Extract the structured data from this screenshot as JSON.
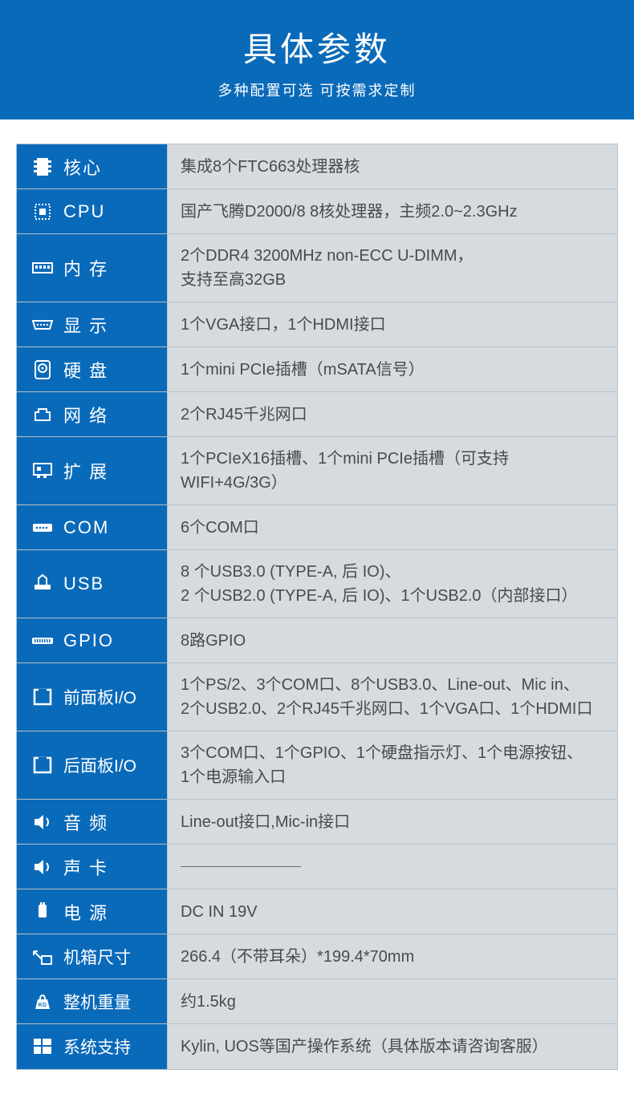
{
  "header": {
    "title": "具体参数",
    "subtitle": "多种配置可选 可按需求定制"
  },
  "colors": {
    "header_bg": "#0a6aba",
    "label_bg": "#0a6aba",
    "value_bg": "#d6dbe0",
    "border": "#b8c0c8",
    "label_text": "#ffffff",
    "value_text": "#4a4a4a"
  },
  "specs": [
    {
      "icon": "chip",
      "label": "核心",
      "value": "集成8个FTC663处理器核"
    },
    {
      "icon": "cpu",
      "label": "CPU",
      "value": "国产飞腾D2000/8  8核处理器，主频2.0~2.3GHz"
    },
    {
      "icon": "ram",
      "label": "内 存",
      "value": "2个DDR4 3200MHz non-ECC U-DIMM，\n支持至高32GB",
      "tall": true
    },
    {
      "icon": "vga",
      "label": "显 示",
      "value": "1个VGA接口，1个HDMI接口"
    },
    {
      "icon": "hdd",
      "label": "硬 盘",
      "value": "1个mini PCIe插槽（mSATA信号）"
    },
    {
      "icon": "net",
      "label": "网 络",
      "value": "2个RJ45千兆网口"
    },
    {
      "icon": "expand",
      "label": "扩 展",
      "value": "1个PCIeX16插槽、1个mini PCIe插槽（可支持WIFI+4G/3G）"
    },
    {
      "icon": "com",
      "label": "COM",
      "value": "6个COM口"
    },
    {
      "icon": "usb",
      "label": "USB",
      "value": "8 个USB3.0 (TYPE-A, 后 IO)、\n2 个USB2.0 (TYPE-A, 后 IO)、1个USB2.0（内部接口）",
      "tall": true
    },
    {
      "icon": "gpio",
      "label": "GPIO",
      "value": "8路GPIO"
    },
    {
      "icon": "panel",
      "label": "前面板I/O",
      "value": "1个PS/2、3个COM口、8个USB3.0、Line-out、Mic in、\n2个USB2.0、2个RJ45千兆网口、1个VGA口、1个HDMI口",
      "tall": true,
      "narrow": true
    },
    {
      "icon": "panel",
      "label": "后面板I/O",
      "value": "3个COM口、1个GPIO、1个硬盘指示灯、1个电源按钮、\n1个电源输入口",
      "tall": true,
      "narrow": true
    },
    {
      "icon": "audio",
      "label": "音 频",
      "value": "Line-out接口,Mic-in接口"
    },
    {
      "icon": "audio",
      "label": "声 卡",
      "value": "",
      "dash": true
    },
    {
      "icon": "power",
      "label": "电 源",
      "value": "DC IN 19V"
    },
    {
      "icon": "size",
      "label": "机箱尺寸",
      "value": "266.4（不带耳朵）*199.4*70mm",
      "narrow": true
    },
    {
      "icon": "weight",
      "label": "整机重量",
      "value": "约1.5kg",
      "narrow": true
    },
    {
      "icon": "os",
      "label": "系统支持",
      "value": "Kylin, UOS等国产操作系统（具体版本请咨询客服）",
      "narrow": true
    }
  ]
}
